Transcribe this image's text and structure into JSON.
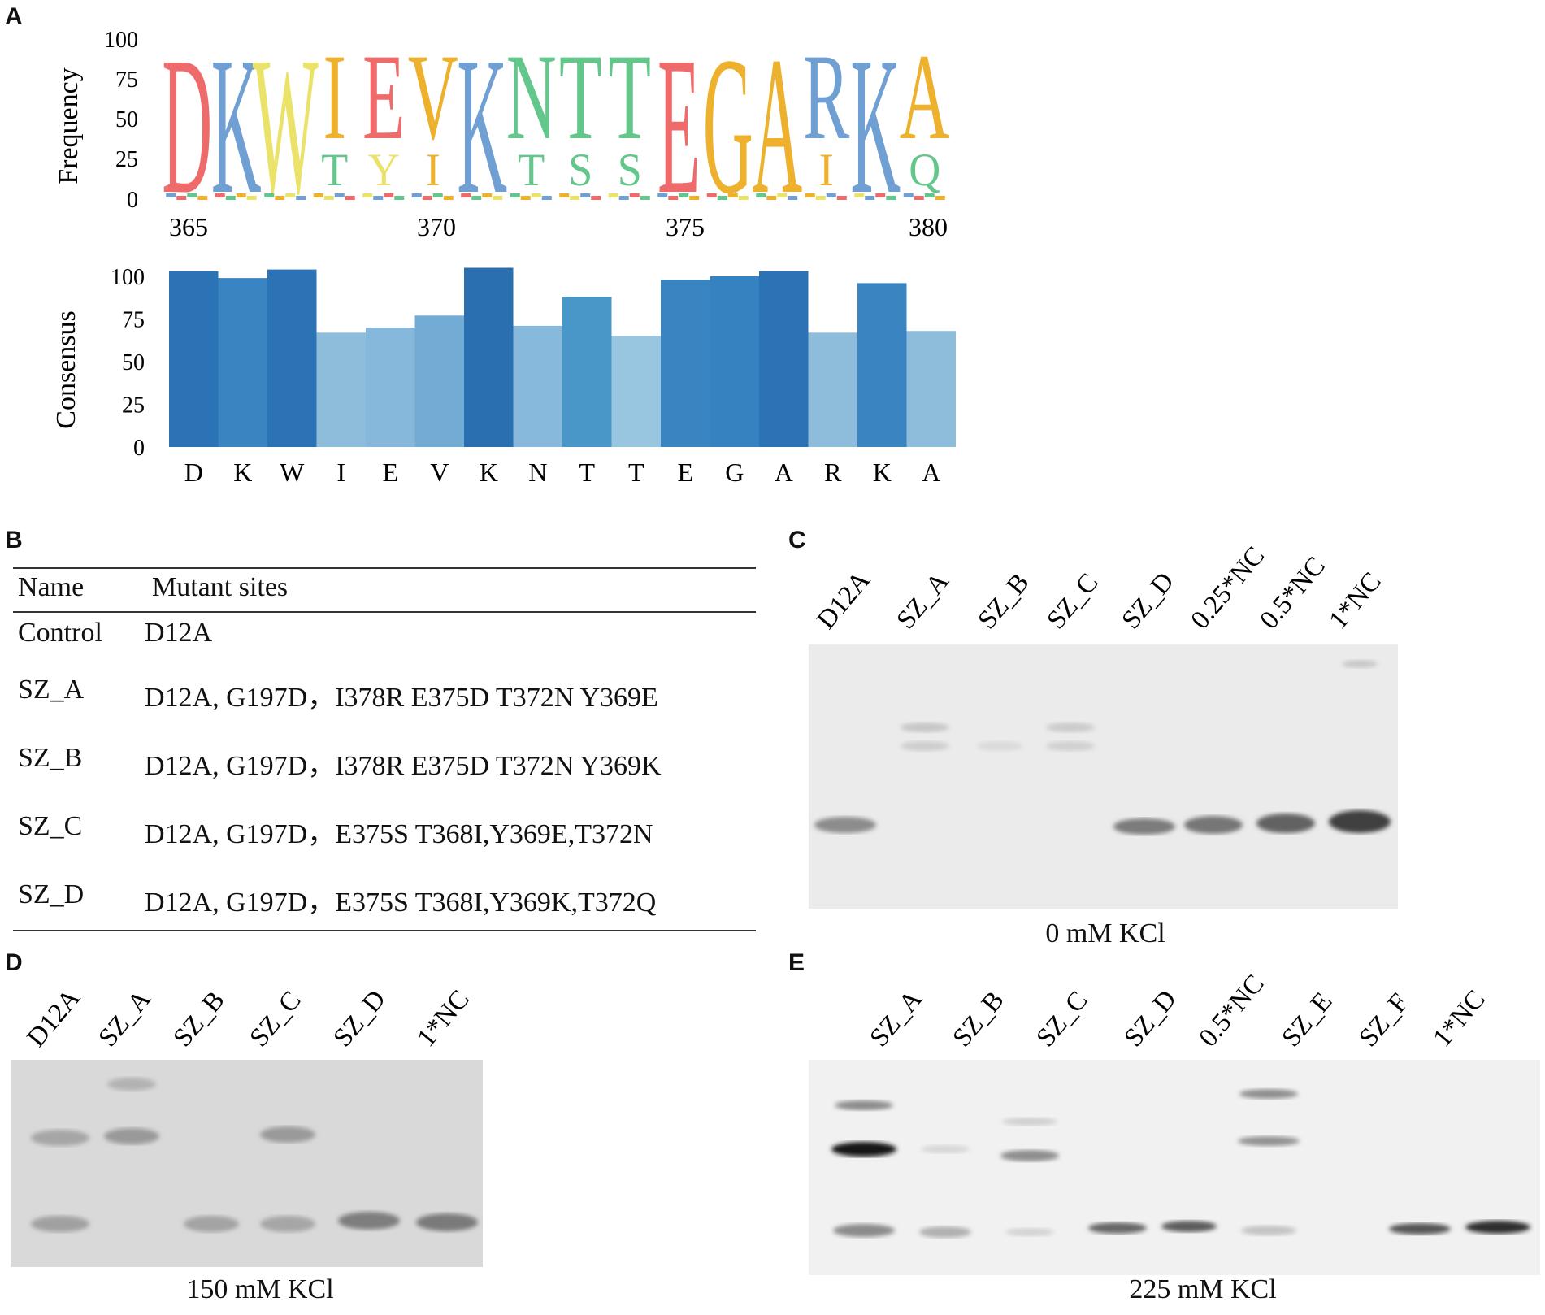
{
  "panels": {
    "A": "A",
    "B": "B",
    "C": "C",
    "D": "D",
    "E": "E"
  },
  "logo": {
    "ylabel": "Frequency",
    "yticks": [
      "100",
      "75",
      "50",
      "25",
      "0"
    ],
    "xticks": [
      "365",
      "370",
      "375",
      "380"
    ],
    "letters": [
      {
        "main": "D",
        "color": "#ef6a6a",
        "minor": ""
      },
      {
        "main": "K",
        "color": "#6f9fd3",
        "minor": ""
      },
      {
        "main": "W",
        "color": "#ebe26a",
        "minor": ""
      },
      {
        "main": "I",
        "color": "#eeb12d",
        "minor": "T"
      },
      {
        "main": "E",
        "color": "#ef6a6a",
        "minor": "Y"
      },
      {
        "main": "V",
        "color": "#eeb12d",
        "minor": "I"
      },
      {
        "main": "K",
        "color": "#6f9fd3",
        "minor": ""
      },
      {
        "main": "N",
        "color": "#63c78b",
        "minor": "T"
      },
      {
        "main": "T",
        "color": "#63c78b",
        "minor": "S"
      },
      {
        "main": "T",
        "color": "#63c78b",
        "minor": "S"
      },
      {
        "main": "E",
        "color": "#ef6a6a",
        "minor": ""
      },
      {
        "main": "G",
        "color": "#eeb12d",
        "minor": ""
      },
      {
        "main": "A",
        "color": "#eeb12d",
        "minor": ""
      },
      {
        "main": "R",
        "color": "#6f9fd3",
        "minor": "I"
      },
      {
        "main": "K",
        "color": "#6f9fd3",
        "minor": ""
      },
      {
        "main": "A",
        "color": "#eeb12d",
        "minor": "Q"
      }
    ],
    "minor_colors": {
      "T": "#63c78b",
      "Y": "#ebe26a",
      "I": "#eeb12d",
      "S": "#63c78b",
      "Q": "#63c78b"
    },
    "bottom_letters": [
      "M",
      "I"
    ]
  },
  "chart_data": {
    "type": "bar",
    "title": "",
    "ylabel": "Consensus",
    "xlabel": "",
    "ylim": [
      0,
      100
    ],
    "yticks": [
      "100",
      "75",
      "50",
      "25",
      "0"
    ],
    "categories": [
      "D",
      "K",
      "W",
      "I",
      "E",
      "V",
      "K",
      "N",
      "T",
      "T",
      "E",
      "G",
      "A",
      "R",
      "K",
      "A"
    ],
    "values": [
      103,
      99,
      104,
      67,
      70,
      77,
      105,
      71,
      88,
      65,
      98,
      100,
      103,
      67,
      96,
      68
    ],
    "colors": [
      "#2b73b4",
      "#3a85c1",
      "#2b73b4",
      "#8ebddc",
      "#85b8da",
      "#72abd4",
      "#2a6fb0",
      "#86b9db",
      "#4996c9",
      "#98c5e0",
      "#3a85c1",
      "#3682c0",
      "#2b73b4",
      "#8ebddc",
      "#3a85c1",
      "#8ebddc"
    ],
    "grid": false
  },
  "table": {
    "headers": [
      "Name",
      "Mutant sites"
    ],
    "rows": [
      [
        "Control",
        "D12A"
      ],
      [
        "SZ_A",
        "D12A, G197D，I378R E375D T372N Y369E"
      ],
      [
        "SZ_B",
        "D12A, G197D，I378R E375D T372N Y369K"
      ],
      [
        "SZ_C",
        "D12A, G197D，E375S T368I,Y369E,T372N"
      ],
      [
        "SZ_D",
        "D12A, G197D，E375S T368I,Y369K,T372Q"
      ]
    ]
  },
  "gel_c": {
    "lanes": [
      "D12A",
      "SZ_A",
      "SZ_B",
      "SZ_C",
      "SZ_D",
      "0.25*NC",
      "0.5*NC",
      "1*NC"
    ],
    "condition": "0 mM KCl"
  },
  "gel_d": {
    "lanes": [
      "D12A",
      "SZ_A",
      "SZ_B",
      "SZ_C",
      "SZ_D",
      "1*NC"
    ],
    "condition": "150 mM KCl"
  },
  "gel_e": {
    "lanes": [
      "SZ_A",
      "SZ_B",
      "SZ_C",
      "SZ_D",
      "0.5*NC",
      "SZ_E",
      "SZ_F",
      "1*NC"
    ],
    "condition": "225 mM KCl"
  }
}
